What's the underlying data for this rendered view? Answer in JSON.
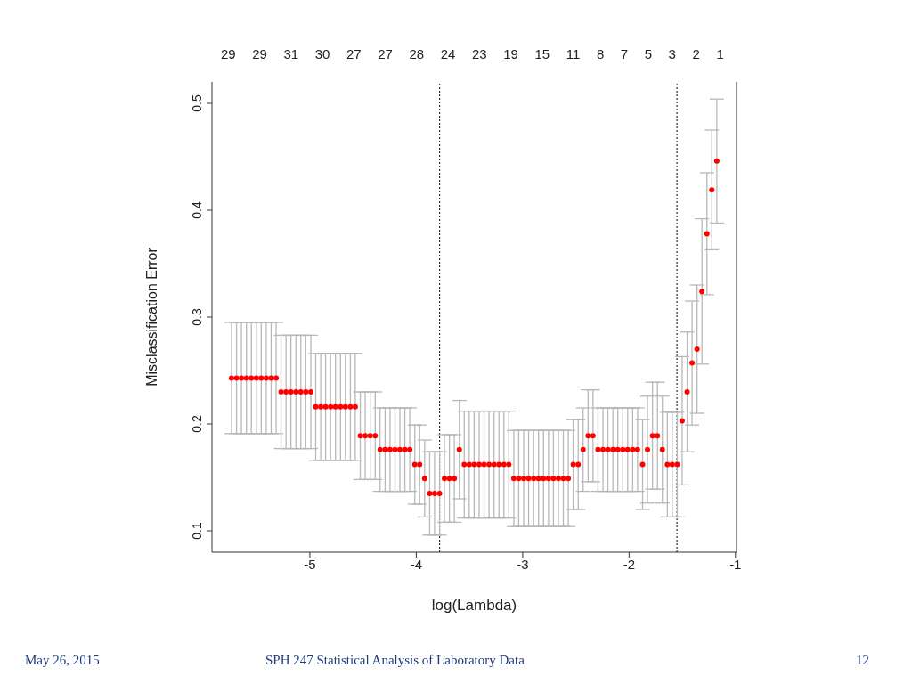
{
  "chart_data": {
    "type": "scatter",
    "xlabel": "log(Lambda)",
    "ylabel": "Misclassification Error",
    "x": [
      -5.736,
      -5.689,
      -5.643,
      -5.596,
      -5.55,
      -5.503,
      -5.457,
      -5.41,
      -5.364,
      -5.317,
      -5.271,
      -5.224,
      -5.178,
      -5.131,
      -5.085,
      -5.038,
      -4.991,
      -4.945,
      -4.898,
      -4.852,
      -4.805,
      -4.759,
      -4.712,
      -4.666,
      -4.619,
      -4.573,
      -4.526,
      -4.48,
      -4.433,
      -4.386,
      -4.34,
      -4.293,
      -4.247,
      -4.2,
      -4.154,
      -4.107,
      -4.061,
      -4.014,
      -3.968,
      -3.921,
      -3.874,
      -3.828,
      -3.781,
      -3.735,
      -3.688,
      -3.642,
      -3.595,
      -3.549,
      -3.502,
      -3.456,
      -3.409,
      -3.363,
      -3.316,
      -3.269,
      -3.223,
      -3.176,
      -3.13,
      -3.083,
      -3.037,
      -2.99,
      -2.944,
      -2.897,
      -2.851,
      -2.804,
      -2.757,
      -2.711,
      -2.664,
      -2.618,
      -2.571,
      -2.525,
      -2.478,
      -2.432,
      -2.385,
      -2.339,
      -2.292,
      -2.245,
      -2.199,
      -2.152,
      -2.106,
      -2.059,
      -2.013,
      -1.966,
      -1.92,
      -1.873,
      -1.827,
      -1.78,
      -1.733,
      -1.687,
      -1.64,
      -1.594,
      -1.547,
      -1.501,
      -1.454,
      -1.408,
      -1.361,
      -1.315,
      -1.268,
      -1.222,
      -1.175
    ],
    "values": [
      0.243,
      0.243,
      0.243,
      0.243,
      0.243,
      0.243,
      0.243,
      0.243,
      0.243,
      0.243,
      0.23,
      0.23,
      0.23,
      0.23,
      0.23,
      0.23,
      0.23,
      0.216,
      0.216,
      0.216,
      0.216,
      0.216,
      0.216,
      0.216,
      0.216,
      0.216,
      0.189,
      0.189,
      0.189,
      0.189,
      0.176,
      0.176,
      0.176,
      0.176,
      0.176,
      0.176,
      0.176,
      0.162,
      0.162,
      0.149,
      0.135,
      0.135,
      0.135,
      0.149,
      0.149,
      0.149,
      0.176,
      0.162,
      0.162,
      0.162,
      0.162,
      0.162,
      0.162,
      0.162,
      0.162,
      0.162,
      0.162,
      0.149,
      0.149,
      0.149,
      0.149,
      0.149,
      0.149,
      0.149,
      0.149,
      0.149,
      0.149,
      0.149,
      0.149,
      0.162,
      0.162,
      0.176,
      0.189,
      0.189,
      0.176,
      0.176,
      0.176,
      0.176,
      0.176,
      0.176,
      0.176,
      0.176,
      0.176,
      0.162,
      0.176,
      0.189,
      0.189,
      0.176,
      0.162,
      0.162,
      0.162,
      0.203,
      0.23,
      0.257,
      0.27,
      0.324,
      0.378,
      0.419,
      0.446
    ],
    "errors": [
      0.052,
      0.052,
      0.052,
      0.052,
      0.052,
      0.052,
      0.052,
      0.052,
      0.052,
      0.052,
      0.053,
      0.053,
      0.053,
      0.053,
      0.053,
      0.053,
      0.053,
      0.05,
      0.05,
      0.05,
      0.05,
      0.05,
      0.05,
      0.05,
      0.05,
      0.05,
      0.041,
      0.041,
      0.041,
      0.041,
      0.039,
      0.039,
      0.039,
      0.039,
      0.039,
      0.039,
      0.039,
      0.037,
      0.037,
      0.036,
      0.039,
      0.039,
      0.039,
      0.041,
      0.041,
      0.041,
      0.046,
      0.05,
      0.05,
      0.05,
      0.05,
      0.05,
      0.05,
      0.05,
      0.05,
      0.05,
      0.05,
      0.045,
      0.045,
      0.045,
      0.045,
      0.045,
      0.045,
      0.045,
      0.045,
      0.045,
      0.045,
      0.045,
      0.045,
      0.042,
      0.042,
      0.039,
      0.043,
      0.043,
      0.039,
      0.039,
      0.039,
      0.039,
      0.039,
      0.039,
      0.039,
      0.039,
      0.039,
      0.042,
      0.05,
      0.05,
      0.05,
      0.05,
      0.049,
      0.049,
      0.049,
      0.06,
      0.056,
      0.058,
      0.06,
      0.068,
      0.057,
      0.056,
      0.058
    ],
    "color": "#ff0000",
    "marker": "circle",
    "xlim": [
      -5.92,
      -0.99
    ],
    "xticks": [
      -5,
      -4,
      -3,
      -2,
      -1
    ],
    "ylim": [
      0.08,
      0.52
    ],
    "yticks": [
      0.1,
      0.2,
      0.3,
      0.4,
      0.5
    ],
    "ref_lines": [
      {
        "axis": "x",
        "value": -3.78,
        "color": "#000000",
        "line_style": "dotted"
      },
      {
        "axis": "x",
        "value": -1.55,
        "color": "#000000",
        "line_style": "dotted"
      }
    ],
    "grid": false,
    "annotations": [
      "29",
      "29",
      "31",
      "30",
      "27",
      "27",
      "28",
      "24",
      "23",
      "19",
      "15",
      "11",
      "8",
      "7",
      "5",
      "3",
      "2",
      "1",
      "May 26, 2015",
      "SPH 247 Statistical Analysis of Laboratory Data",
      "12"
    ]
  }
}
